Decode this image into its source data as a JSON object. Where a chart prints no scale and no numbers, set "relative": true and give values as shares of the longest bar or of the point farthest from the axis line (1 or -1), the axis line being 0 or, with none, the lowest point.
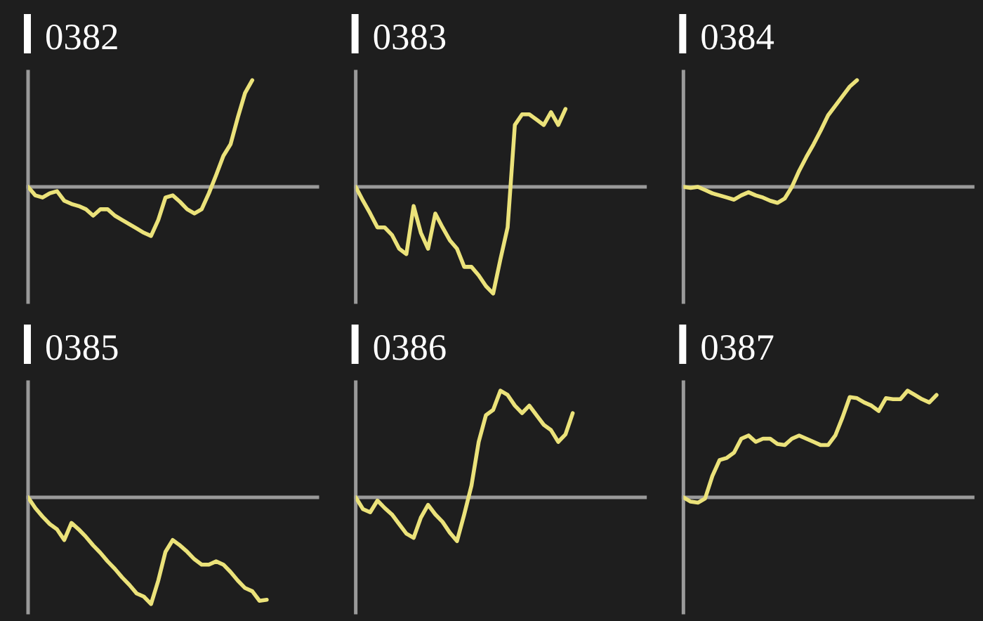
{
  "chart_data": [
    {
      "type": "line",
      "title": "0382",
      "relative": true,
      "categories": [
        null,
        null,
        null,
        null,
        null,
        null,
        null,
        null,
        null,
        null,
        null,
        null,
        null,
        null,
        null,
        null,
        null,
        null,
        null,
        null,
        null,
        null,
        null,
        null,
        null,
        null,
        null,
        null,
        null,
        null,
        null,
        null,
        null,
        null,
        null,
        null,
        null,
        null,
        null,
        null
      ],
      "series": [
        {
          "color": "#ebe27a",
          "values": [
            0,
            -0.08,
            -0.1,
            -0.06,
            -0.04,
            -0.13,
            -0.16,
            -0.18,
            -0.21,
            -0.27,
            -0.21,
            -0.21,
            -0.27,
            -0.31,
            -0.35,
            -0.39,
            -0.43,
            -0.46,
            -0.31,
            -0.1,
            -0.08,
            -0.14,
            -0.21,
            -0.25,
            -0.21,
            -0.06,
            0.11,
            0.29,
            0.4,
            0.65,
            0.88,
            1,
            null,
            null,
            null,
            null,
            null,
            null,
            null,
            null
          ]
        }
      ]
    },
    {
      "type": "line",
      "title": "0383",
      "relative": true,
      "categories": [
        null,
        null,
        null,
        null,
        null,
        null,
        null,
        null,
        null,
        null,
        null,
        null,
        null,
        null,
        null,
        null,
        null,
        null,
        null,
        null,
        null,
        null,
        null,
        null,
        null,
        null,
        null,
        null,
        null,
        null,
        null,
        null,
        null,
        null,
        null,
        null,
        null,
        null,
        null,
        null
      ],
      "series": [
        {
          "color": "#ebe27a",
          "values": [
            0,
            -0.13,
            -0.25,
            -0.38,
            -0.38,
            -0.45,
            -0.58,
            -0.63,
            -0.18,
            -0.43,
            -0.58,
            -0.25,
            -0.38,
            -0.5,
            -0.58,
            -0.75,
            -0.75,
            -0.83,
            -0.93,
            -1,
            -0.68,
            -0.38,
            0.58,
            0.68,
            0.68,
            0.63,
            0.58,
            0.7,
            0.58,
            0.73,
            null,
            null,
            null,
            null,
            null,
            null,
            null,
            null,
            null,
            null
          ]
        }
      ]
    },
    {
      "type": "line",
      "title": "0384",
      "relative": true,
      "categories": [
        null,
        null,
        null,
        null,
        null,
        null,
        null,
        null,
        null,
        null,
        null,
        null,
        null,
        null,
        null,
        null,
        null,
        null,
        null,
        null,
        null,
        null,
        null,
        null,
        null,
        null,
        null,
        null,
        null,
        null,
        null,
        null,
        null,
        null,
        null,
        null,
        null,
        null,
        null,
        null
      ],
      "series": [
        {
          "color": "#ebe27a",
          "values": [
            0,
            -0.01,
            0,
            -0.03,
            -0.06,
            -0.08,
            -0.1,
            -0.12,
            -0.08,
            -0.05,
            -0.08,
            -0.1,
            -0.13,
            -0.15,
            -0.11,
            0,
            0.15,
            0.28,
            0.4,
            0.53,
            0.67,
            0.76,
            0.85,
            0.94,
            1,
            null,
            null,
            null,
            null,
            null,
            null,
            null,
            null,
            null,
            null,
            null,
            null,
            null,
            null,
            null
          ]
        }
      ]
    },
    {
      "type": "line",
      "title": "0385",
      "relative": true,
      "categories": [
        null,
        null,
        null,
        null,
        null,
        null,
        null,
        null,
        null,
        null,
        null,
        null,
        null,
        null,
        null,
        null,
        null,
        null,
        null,
        null,
        null,
        null,
        null,
        null,
        null,
        null,
        null,
        null,
        null,
        null,
        null,
        null,
        null,
        null,
        null,
        null,
        null,
        null,
        null,
        null
      ],
      "series": [
        {
          "color": "#ebe27a",
          "values": [
            0,
            -0.1,
            -0.18,
            -0.25,
            -0.3,
            -0.4,
            -0.24,
            -0.3,
            -0.37,
            -0.45,
            -0.52,
            -0.6,
            -0.67,
            -0.75,
            -0.82,
            -0.9,
            -0.93,
            -1,
            -0.78,
            -0.51,
            -0.4,
            -0.45,
            -0.51,
            -0.58,
            -0.63,
            -0.63,
            -0.6,
            -0.63,
            -0.7,
            -0.78,
            -0.85,
            -0.88,
            -0.97,
            -0.96,
            null,
            null,
            null,
            null,
            null,
            null
          ]
        }
      ]
    },
    {
      "type": "line",
      "title": "0386",
      "relative": true,
      "categories": [
        null,
        null,
        null,
        null,
        null,
        null,
        null,
        null,
        null,
        null,
        null,
        null,
        null,
        null,
        null,
        null,
        null,
        null,
        null,
        null,
        null,
        null,
        null,
        null,
        null,
        null,
        null,
        null,
        null,
        null,
        null,
        null,
        null,
        null,
        null,
        null,
        null,
        null,
        null,
        null
      ],
      "series": [
        {
          "color": "#ebe27a",
          "values": [
            0,
            -0.11,
            -0.14,
            -0.03,
            -0.1,
            -0.16,
            -0.25,
            -0.34,
            -0.38,
            -0.19,
            -0.07,
            -0.16,
            -0.23,
            -0.33,
            -0.41,
            -0.16,
            0.11,
            0.52,
            0.77,
            0.82,
            1,
            0.96,
            0.86,
            0.79,
            0.86,
            0.77,
            0.68,
            0.63,
            0.52,
            0.59,
            0.79,
            null,
            null,
            null,
            null,
            null,
            null,
            null,
            null,
            null
          ]
        }
      ]
    },
    {
      "type": "line",
      "title": "0387",
      "relative": true,
      "categories": [
        null,
        null,
        null,
        null,
        null,
        null,
        null,
        null,
        null,
        null,
        null,
        null,
        null,
        null,
        null,
        null,
        null,
        null,
        null,
        null,
        null,
        null,
        null,
        null,
        null,
        null,
        null,
        null,
        null,
        null,
        null,
        null,
        null,
        null,
        null,
        null,
        null,
        null,
        null,
        null
      ],
      "series": [
        {
          "color": "#ebe27a",
          "values": [
            0,
            -0.04,
            -0.05,
            -0.01,
            0.2,
            0.35,
            0.37,
            0.42,
            0.55,
            0.58,
            0.52,
            0.55,
            0.55,
            0.5,
            0.49,
            0.55,
            0.58,
            0.55,
            0.52,
            0.49,
            0.49,
            0.58,
            0.75,
            0.94,
            0.93,
            0.89,
            0.86,
            0.81,
            0.93,
            0.92,
            0.92,
            1,
            0.96,
            0.92,
            0.89,
            0.96,
            null,
            null,
            null,
            null
          ]
        }
      ]
    }
  ]
}
